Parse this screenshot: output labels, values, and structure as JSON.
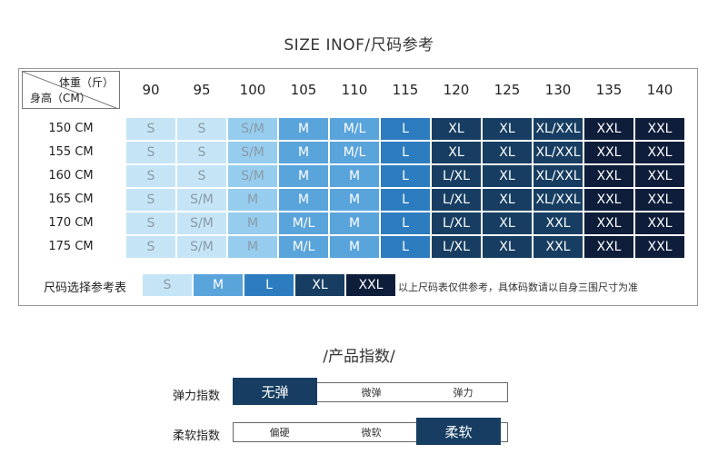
{
  "title": "SIZE INOF/尺码参考",
  "table": {
    "corner_weight": "体重（斤）",
    "corner_height": "身高（CM）",
    "weights": [
      "90",
      "95",
      "100",
      "105",
      "110",
      "115",
      "120",
      "125",
      "130",
      "135",
      "140"
    ],
    "heights": [
      "150 CM",
      "155 CM",
      "160 CM",
      "165 CM",
      "170 CM",
      "175 CM"
    ],
    "rows": [
      [
        "S",
        "S",
        "S/M",
        "M",
        "M/L",
        "L",
        "XL",
        "XL",
        "XL/XXL",
        "XXL",
        "XXL"
      ],
      [
        "S",
        "S",
        "S/M",
        "M",
        "M/L",
        "L",
        "XL",
        "XL",
        "XL/XXL",
        "XXL",
        "XXL"
      ],
      [
        "S",
        "S",
        "S/M",
        "M",
        "M",
        "L",
        "L/XL",
        "XL",
        "XL/XXL",
        "XXL",
        "XXL"
      ],
      [
        "S",
        "S/M",
        "M",
        "M",
        "M",
        "L",
        "L/XL",
        "XL",
        "XL/XXL",
        "XXL",
        "XXL"
      ],
      [
        "S",
        "S/M",
        "M",
        "M/L",
        "M",
        "L",
        "L/XL",
        "XL",
        "XXL",
        "XXL",
        "XXL"
      ],
      [
        "S",
        "S/M",
        "M",
        "M/L",
        "M",
        "L",
        "L/XL",
        "XL",
        "XXL",
        "XXL",
        "XXL"
      ]
    ],
    "column_colors": [
      "#c5e5f6",
      "#c5e5f6",
      "#96cdee",
      "#5aa4dc",
      "#5aa4dc",
      "#2d7cc0",
      "#173e62",
      "#173e62",
      "#173e62",
      "#0d1d3a",
      "#0d1d3a"
    ],
    "column_text_colors": [
      "#8a9aa6",
      "#8a9aa6",
      "#8a9aa6",
      "#ffffff",
      "#ffffff",
      "#ffffff",
      "#ffffff",
      "#ffffff",
      "#ffffff",
      "#ffffff",
      "#ffffff"
    ]
  },
  "reference": {
    "label": "尺码选择参考表",
    "items": [
      {
        "label": "S",
        "color": "#c5e5f6",
        "text": "#8a9aa6"
      },
      {
        "label": "M",
        "color": "#5aa4dc",
        "text": "#ffffff"
      },
      {
        "label": "L",
        "color": "#2d7cc0",
        "text": "#ffffff"
      },
      {
        "label": "XL",
        "color": "#173e62",
        "text": "#ffffff"
      },
      {
        "label": "XXL",
        "color": "#0d1d3a",
        "text": "#ffffff"
      }
    ],
    "note": "以上尺码表仅供参考，具体码数请以自身三围尺寸为准"
  },
  "product": {
    "title": "/产品指数/",
    "elasticity": {
      "label": "弹力指数",
      "options": [
        "无弹",
        "微弹",
        "弹力"
      ],
      "selected": 0
    },
    "softness": {
      "label": "柔软指数",
      "options": [
        "偏硬",
        "微软",
        "柔软"
      ],
      "selected": 2
    }
  }
}
